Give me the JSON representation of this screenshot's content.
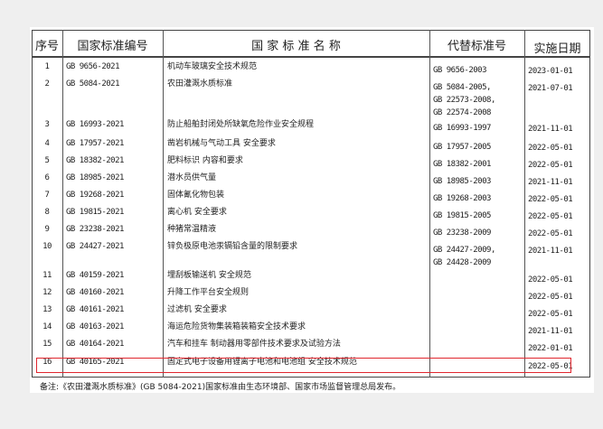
{
  "headers": {
    "seq": "序号",
    "code": "国家标准编号",
    "name": "国 家 标 准 名 称",
    "replaces": "代替标准号",
    "date": "实施日期"
  },
  "rows": [
    {
      "seq": "1",
      "code": "GB 9656-2021",
      "name": "机动车玻璃安全技术规范",
      "replaces": [
        "GB 9656-2003"
      ],
      "date": "2023-01-01"
    },
    {
      "seq": "2",
      "code": "GB 5084-2021",
      "name": "农田灌溉水质标准",
      "replaces": [
        "GB 5084-2005,",
        "GB 22573-2008,",
        "GB 22574-2008"
      ],
      "date": "2021-07-01"
    },
    {
      "seq": "3",
      "code": "GB 16993-2021",
      "name": "防止船舶封闭处所缺氧危险作业安全规程",
      "replaces": [
        "GB 16993-1997"
      ],
      "date": "2021-11-01"
    },
    {
      "seq": "4",
      "code": "GB 17957-2021",
      "name": "凿岩机械与气动工具 安全要求",
      "replaces": [
        "GB 17957-2005"
      ],
      "date": "2022-05-01"
    },
    {
      "seq": "5",
      "code": "GB 18382-2021",
      "name": "肥料标识 内容和要求",
      "replaces": [
        "GB 18382-2001"
      ],
      "date": "2022-05-01"
    },
    {
      "seq": "6",
      "code": "GB 18985-2021",
      "name": "潜水员供气量",
      "replaces": [
        "GB 18985-2003"
      ],
      "date": "2021-11-01"
    },
    {
      "seq": "7",
      "code": "GB 19268-2021",
      "name": "固体氰化物包装",
      "replaces": [
        "GB 19268-2003"
      ],
      "date": "2022-05-01"
    },
    {
      "seq": "8",
      "code": "GB 19815-2021",
      "name": "离心机 安全要求",
      "replaces": [
        "GB 19815-2005"
      ],
      "date": "2022-05-01"
    },
    {
      "seq": "9",
      "code": "GB 23238-2021",
      "name": "种猪常温精液",
      "replaces": [
        "GB 23238-2009"
      ],
      "date": "2022-05-01"
    },
    {
      "seq": "10",
      "code": "GB 24427-2021",
      "name": "锌负极原电池汞镉铅含量的限制要求",
      "replaces": [
        "GB 24427-2009,",
        "GB 24428-2009"
      ],
      "date": "2021-11-01"
    },
    {
      "seq": "11",
      "code": "GB 40159-2021",
      "name": "埋刮板输送机 安全规范",
      "replaces": [],
      "date": "2022-05-01"
    },
    {
      "seq": "12",
      "code": "GB 40160-2021",
      "name": "升降工作平台安全规则",
      "replaces": [],
      "date": "2022-05-01"
    },
    {
      "seq": "13",
      "code": "GB 40161-2021",
      "name": "过滤机 安全要求",
      "replaces": [],
      "date": "2022-05-01"
    },
    {
      "seq": "14",
      "code": "GB 40163-2021",
      "name": "海运危险货物集装箱装箱安全技术要求",
      "replaces": [],
      "date": "2021-11-01"
    },
    {
      "seq": "15",
      "code": "GB 40164-2021",
      "name": "汽车和挂车 制动器用零部件技术要求及试验方法",
      "replaces": [],
      "date": "2022-01-01"
    },
    {
      "seq": "16",
      "code": "GB 40165-2021",
      "name": "固定式电子设备用锂离子电池和电池组 安全技术规范",
      "replaces": [],
      "date": "2022-05-01",
      "highlighted": true
    }
  ],
  "note": "备注:《农田灌溉水质标准》(GB 5084-2021)国家标准由生态环境部、国家市场监督管理总局发布。",
  "highlight_color": "#e0262e"
}
